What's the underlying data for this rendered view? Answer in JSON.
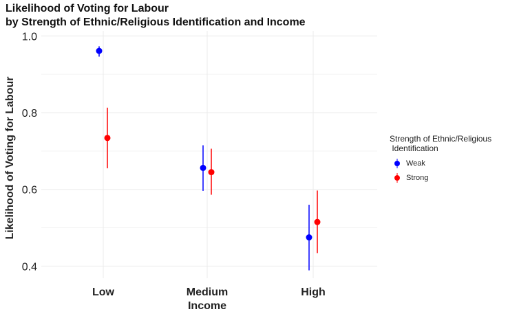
{
  "chart_data": {
    "type": "scatter",
    "title": "Likelihood of Voting for Labour",
    "subtitle": "by Strength of Ethnic/Religious Identification and Income",
    "xlabel": "Income",
    "ylabel": "Likelihood of Voting for Labour",
    "categories": [
      "Low",
      "Medium",
      "High"
    ],
    "ylim": [
      0.37,
      1.0
    ],
    "yticks": [
      0.4,
      0.6,
      0.8,
      1.0
    ],
    "ytick_labels": [
      "0.4",
      "0.6",
      "0.8",
      "1.0"
    ],
    "grid": true,
    "legend": {
      "title": "Strength of Ethnic/Religious\n Identification",
      "placement": "right"
    },
    "series": [
      {
        "name": "Weak",
        "color": "#0000ff",
        "values": [
          0.961,
          0.656,
          0.475
        ],
        "lower": [
          0.946,
          0.596,
          0.389
        ],
        "upper": [
          0.973,
          0.715,
          0.56
        ]
      },
      {
        "name": "Strong",
        "color": "#ff0000",
        "values": [
          0.734,
          0.645,
          0.515
        ],
        "lower": [
          0.655,
          0.586,
          0.434
        ],
        "upper": [
          0.813,
          0.706,
          0.597
        ]
      }
    ]
  }
}
